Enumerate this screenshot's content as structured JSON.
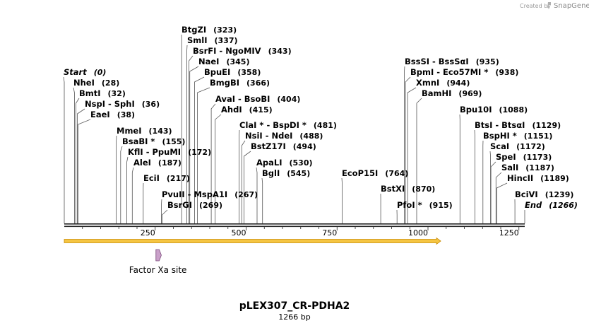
{
  "branding": {
    "created_by": "Created by",
    "product": "SnapGene"
  },
  "map": {
    "name": "pLEX307_CR-PDHA2",
    "length_label": "1266 bp",
    "length": 1266,
    "ticks": [
      "250",
      "500",
      "750",
      "1000",
      "1250"
    ],
    "tick_values": [
      250,
      500,
      750,
      1000,
      1250
    ]
  },
  "sites": [
    {
      "name": "Start",
      "pos": "(0)",
      "bp": 0,
      "italic": true
    },
    {
      "name": "NheI",
      "pos": "(28)",
      "bp": 28
    },
    {
      "name": "BmtI",
      "pos": "(32)",
      "bp": 32
    },
    {
      "name": "NspI  -  SphI",
      "pos": "(36)",
      "bp": 36
    },
    {
      "name": "EaeI",
      "pos": "(38)",
      "bp": 38
    },
    {
      "name": "MmeI",
      "pos": "(143)",
      "bp": 143
    },
    {
      "name": "BsaBI *",
      "pos": "(155)",
      "bp": 155
    },
    {
      "name": "KflI  -  PpuMI",
      "pos": "(172)",
      "bp": 172
    },
    {
      "name": "AleI",
      "pos": "(187)",
      "bp": 187
    },
    {
      "name": "EciI",
      "pos": "(217)",
      "bp": 217
    },
    {
      "name": "PvuII  -  MspA1I",
      "pos": "(267)",
      "bp": 267
    },
    {
      "name": "BsrGI",
      "pos": "(269)",
      "bp": 269
    },
    {
      "name": "BtgZI",
      "pos": "(323)",
      "bp": 323
    },
    {
      "name": "SmlI",
      "pos": "(337)",
      "bp": 337
    },
    {
      "name": "BsrFI  -  NgoMIV",
      "pos": "(343)",
      "bp": 343
    },
    {
      "name": "NaeI",
      "pos": "(345)",
      "bp": 345
    },
    {
      "name": "BpuEI",
      "pos": "(358)",
      "bp": 358
    },
    {
      "name": "BmgBI",
      "pos": "(366)",
      "bp": 366
    },
    {
      "name": "AvaI  -  BsoBI",
      "pos": "(404)",
      "bp": 404
    },
    {
      "name": "AhdI",
      "pos": "(415)",
      "bp": 415
    },
    {
      "name": "ClaI *  -  BspDI *",
      "pos": "(481)",
      "bp": 481
    },
    {
      "name": "NsiI  -  NdeI",
      "pos": "(488)",
      "bp": 488
    },
    {
      "name": "BstZ17I",
      "pos": "(494)",
      "bp": 494
    },
    {
      "name": "ApaLI",
      "pos": "(530)",
      "bp": 530
    },
    {
      "name": "BglI",
      "pos": "(545)",
      "bp": 545
    },
    {
      "name": "EcoP15I",
      "pos": "(764)",
      "bp": 764
    },
    {
      "name": "BstXI",
      "pos": "(870)",
      "bp": 870
    },
    {
      "name": "PfoI *",
      "pos": "(915)",
      "bp": 915
    },
    {
      "name": "BssSI  -  BssSαI",
      "pos": "(935)",
      "bp": 935
    },
    {
      "name": "BpmI  -  Eco57MI *",
      "pos": "(938)",
      "bp": 938
    },
    {
      "name": "XmnI",
      "pos": "(944)",
      "bp": 944
    },
    {
      "name": "BamHI",
      "pos": "(969)",
      "bp": 969
    },
    {
      "name": "Bpu10I",
      "pos": "(1088)",
      "bp": 1088
    },
    {
      "name": "BtsI  -  BtsαI",
      "pos": "(1129)",
      "bp": 1129
    },
    {
      "name": "BspHI *",
      "pos": "(1151)",
      "bp": 1151
    },
    {
      "name": "ScaI",
      "pos": "(1172)",
      "bp": 1172
    },
    {
      "name": "SpeI",
      "pos": "(1173)",
      "bp": 1173
    },
    {
      "name": "SalI",
      "pos": "(1187)",
      "bp": 1187
    },
    {
      "name": "HincII",
      "pos": "(1189)",
      "bp": 1189
    },
    {
      "name": "BciVI",
      "pos": "(1239)",
      "bp": 1239
    },
    {
      "name": "End",
      "pos": "(1266)",
      "bp": 1266,
      "italic": true
    }
  ],
  "features": [
    {
      "name": "Factor Xa site",
      "start_bp": 252,
      "end_bp": 263,
      "color": "#c9a0c9",
      "stroke": "#7a4a7a"
    }
  ],
  "orf": {
    "start_bp": 0,
    "end_bp": 1035,
    "color": "#f5c542",
    "outline": "#c98a00"
  },
  "colors": {
    "line": "#555555",
    "backbone": "#222222"
  }
}
